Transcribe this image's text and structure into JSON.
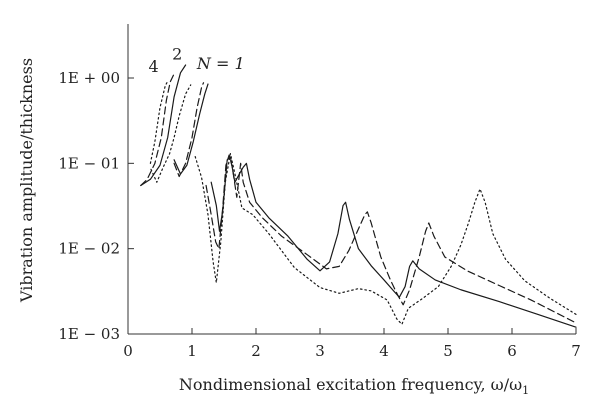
{
  "chart_data": {
    "type": "line",
    "title": "",
    "xlabel": "Nondimensional excitation frequency, ω/ω",
    "xlabel_sub": "1",
    "ylabel": "Vibration amplitude/thickness",
    "xlim": [
      0,
      7
    ],
    "ylim": [
      0.001,
      1.9
    ],
    "y_scale": "log",
    "x_ticks": [
      0,
      1,
      2,
      3,
      4,
      5,
      6,
      7
    ],
    "x_tick_labels": [
      "0",
      "1",
      "2",
      "3",
      "4",
      "5",
      "6",
      "7"
    ],
    "y_ticks": [
      0.001,
      0.01,
      0.1,
      1
    ],
    "y_tick_labels": [
      "1E − 03",
      "1E − 02",
      "1E − 01",
      "1E + 00"
    ],
    "grid": false,
    "curve_labels": [
      {
        "text": "N = 1",
        "italic": true,
        "x": 1.45,
        "y": 1.28
      },
      {
        "text": "2",
        "italic": false,
        "x": 0.77,
        "y": 1.65
      },
      {
        "text": "4",
        "italic": false,
        "x": 0.4,
        "y": 1.18
      }
    ],
    "series": [
      {
        "label_ref": "N = 1",
        "style": "solid",
        "segments": [
          [
            [
              0.2,
              0.055
            ],
            [
              0.35,
              0.065
            ],
            [
              0.5,
              0.095
            ],
            [
              0.62,
              0.2
            ],
            [
              0.72,
              0.6
            ],
            [
              0.82,
              1.15
            ],
            [
              0.9,
              1.42
            ]
          ],
          [
            [
              0.72,
              0.11
            ],
            [
              0.82,
              0.075
            ],
            [
              0.92,
              0.095
            ],
            [
              1.02,
              0.18
            ],
            [
              1.12,
              0.38
            ],
            [
              1.2,
              0.65
            ],
            [
              1.25,
              0.85
            ]
          ],
          [
            [
              1.3,
              0.06
            ],
            [
              1.38,
              0.032
            ],
            [
              1.43,
              0.016
            ],
            [
              1.48,
              0.028
            ],
            [
              1.55,
              0.11
            ],
            [
              1.6,
              0.118
            ],
            [
              1.67,
              0.06
            ],
            [
              1.74,
              0.075
            ],
            [
              1.8,
              0.09
            ],
            [
              1.85,
              0.1
            ],
            [
              1.9,
              0.065
            ],
            [
              2.0,
              0.035
            ],
            [
              2.2,
              0.023
            ],
            [
              2.5,
              0.014
            ],
            [
              2.8,
              0.0075
            ],
            [
              3.0,
              0.0055
            ],
            [
              3.15,
              0.007
            ],
            [
              3.28,
              0.015
            ],
            [
              3.36,
              0.032
            ],
            [
              3.4,
              0.035
            ],
            [
              3.46,
              0.022
            ],
            [
              3.6,
              0.01
            ],
            [
              3.8,
              0.0063
            ],
            [
              4.0,
              0.0043
            ],
            [
              4.15,
              0.0032
            ],
            [
              4.24,
              0.0027
            ],
            [
              4.33,
              0.0036
            ],
            [
              4.4,
              0.0062
            ],
            [
              4.45,
              0.0072
            ],
            [
              4.55,
              0.0058
            ],
            [
              4.8,
              0.0043
            ],
            [
              5.2,
              0.0033
            ],
            [
              5.8,
              0.0024
            ],
            [
              6.4,
              0.0017
            ],
            [
              7.0,
              0.0012
            ]
          ]
        ]
      },
      {
        "label_ref": "2",
        "style": "dashed",
        "segments": [
          [
            [
              0.2,
              0.055
            ],
            [
              0.3,
              0.065
            ],
            [
              0.42,
              0.1
            ],
            [
              0.52,
              0.2
            ],
            [
              0.6,
              0.55
            ],
            [
              0.66,
              0.9
            ],
            [
              0.72,
              1.12
            ]
          ],
          [
            [
              0.72,
              0.1
            ],
            [
              0.8,
              0.07
            ],
            [
              0.9,
              0.1
            ],
            [
              1.0,
              0.2
            ],
            [
              1.08,
              0.45
            ],
            [
              1.15,
              0.78
            ],
            [
              1.18,
              0.88
            ]
          ],
          [
            [
              1.22,
              0.055
            ],
            [
              1.3,
              0.025
            ],
            [
              1.37,
              0.012
            ],
            [
              1.42,
              0.01
            ],
            [
              1.48,
              0.03
            ],
            [
              1.53,
              0.095
            ],
            [
              1.58,
              0.125
            ],
            [
              1.63,
              0.09
            ],
            [
              1.7,
              0.04
            ],
            [
              1.76,
              0.1
            ],
            [
              1.8,
              0.06
            ],
            [
              1.9,
              0.035
            ],
            [
              2.1,
              0.023
            ],
            [
              2.4,
              0.014
            ],
            [
              2.8,
              0.0085
            ],
            [
              3.1,
              0.0058
            ],
            [
              3.3,
              0.0062
            ],
            [
              3.45,
              0.0095
            ],
            [
              3.6,
              0.017
            ],
            [
              3.7,
              0.025
            ],
            [
              3.74,
              0.027
            ],
            [
              3.8,
              0.02
            ],
            [
              3.95,
              0.008
            ],
            [
              4.1,
              0.0043
            ],
            [
              4.22,
              0.0028
            ],
            [
              4.3,
              0.0022
            ],
            [
              4.4,
              0.0033
            ],
            [
              4.55,
              0.008
            ],
            [
              4.65,
              0.016
            ],
            [
              4.7,
              0.02
            ],
            [
              4.78,
              0.014
            ],
            [
              4.95,
              0.008
            ],
            [
              5.3,
              0.0055
            ],
            [
              5.8,
              0.0037
            ],
            [
              6.3,
              0.0025
            ],
            [
              7.0,
              0.00135
            ]
          ]
        ]
      },
      {
        "label_ref": "4",
        "style": "dotted",
        "segments": [
          [
            [
              0.35,
              0.1
            ],
            [
              0.42,
              0.18
            ],
            [
              0.5,
              0.45
            ],
            [
              0.58,
              0.8
            ],
            [
              0.62,
              0.92
            ]
          ],
          [
            [
              0.36,
              0.085
            ],
            [
              0.45,
              0.06
            ],
            [
              0.55,
              0.09
            ],
            [
              0.65,
              0.13
            ],
            [
              0.72,
              0.2
            ],
            [
              0.8,
              0.36
            ],
            [
              0.9,
              0.65
            ],
            [
              0.98,
              0.83
            ]
          ],
          [
            [
              1.05,
              0.12
            ],
            [
              1.15,
              0.068
            ],
            [
              1.25,
              0.025
            ],
            [
              1.33,
              0.007
            ],
            [
              1.38,
              0.004
            ],
            [
              1.45,
              0.012
            ],
            [
              1.52,
              0.06
            ],
            [
              1.6,
              0.13
            ],
            [
              1.68,
              0.07
            ],
            [
              1.78,
              0.03
            ],
            [
              1.95,
              0.025
            ],
            [
              2.2,
              0.015
            ],
            [
              2.6,
              0.006
            ],
            [
              3.0,
              0.0035
            ],
            [
              3.3,
              0.003
            ],
            [
              3.6,
              0.0034
            ],
            [
              3.8,
              0.0032
            ],
            [
              4.05,
              0.0025
            ],
            [
              4.2,
              0.0015
            ],
            [
              4.28,
              0.0013
            ],
            [
              4.38,
              0.002
            ],
            [
              4.6,
              0.0026
            ],
            [
              4.85,
              0.0036
            ],
            [
              5.05,
              0.0062
            ],
            [
              5.2,
              0.011
            ],
            [
              5.32,
              0.02
            ],
            [
              5.42,
              0.035
            ],
            [
              5.5,
              0.05
            ],
            [
              5.58,
              0.035
            ],
            [
              5.7,
              0.015
            ],
            [
              5.9,
              0.0075
            ],
            [
              6.2,
              0.0042
            ],
            [
              6.6,
              0.0026
            ],
            [
              7.0,
              0.0017
            ]
          ]
        ]
      }
    ]
  }
}
